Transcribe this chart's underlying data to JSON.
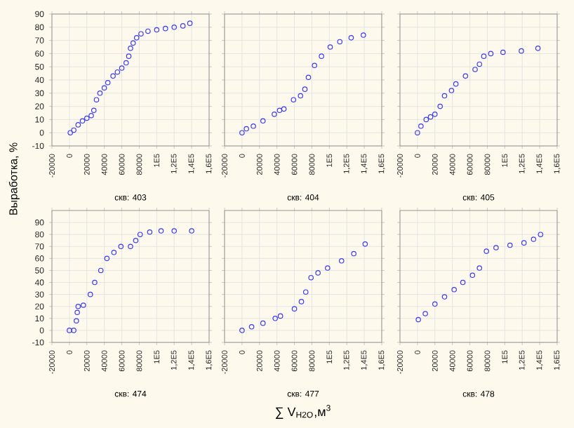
{
  "chart_data": [
    {
      "type": "scatter",
      "xlabel": "скв: 403",
      "ylabel": "Выработка, %",
      "color": "#3b3bf5",
      "marker": "circle",
      "grid": true,
      "x": [
        1000,
        5000,
        10000,
        15000,
        20000,
        25000,
        28000,
        31000,
        35000,
        40000,
        44000,
        50000,
        55000,
        60000,
        65000,
        68000,
        70000,
        73000,
        77000,
        82000,
        90000,
        100000,
        110000,
        120000,
        130000,
        138000
      ],
      "values": [
        0,
        2,
        6,
        9,
        11,
        13,
        17,
        25,
        30,
        34,
        38,
        43,
        46,
        49,
        53,
        58,
        64,
        68,
        72,
        75,
        77,
        78,
        79,
        80,
        81,
        83
      ],
      "xlim": [
        -20000,
        160000
      ],
      "ylim": [
        -10,
        90
      ],
      "xticks": [
        -20000,
        0,
        20000,
        40000,
        60000,
        80000,
        {
          "value": 100000,
          "label": "1E5"
        },
        {
          "value": 120000,
          "label": "1,2E5"
        },
        {
          "value": 140000,
          "label": "1,4E5"
        },
        {
          "value": 160000,
          "label": "1,6E5"
        }
      ],
      "yticks": [
        -10,
        0,
        10,
        20,
        30,
        40,
        50,
        60,
        70,
        80,
        90
      ]
    },
    {
      "type": "scatter",
      "xlabel": "скв: 404",
      "color": "#3b3bf5",
      "marker": "circle",
      "grid": true,
      "tick_labels": "x",
      "x": [
        0,
        5000,
        13000,
        24000,
        37000,
        43000,
        48000,
        59000,
        67000,
        72000,
        76000,
        83000,
        91000,
        101000,
        112000,
        125000,
        139000
      ],
      "values": [
        0,
        3,
        5,
        9,
        14,
        17,
        18,
        25,
        28,
        33,
        42,
        51,
        58,
        65,
        69,
        72,
        74
      ],
      "xlim": [
        -20000,
        160000
      ],
      "ylim": [
        -10,
        90
      ],
      "xticks": [
        -20000,
        0,
        20000,
        40000,
        60000,
        80000,
        {
          "value": 100000,
          "label": "1E5"
        },
        {
          "value": 120000,
          "label": "1,2E5"
        },
        {
          "value": 140000,
          "label": "1,4E5"
        },
        {
          "value": 160000,
          "label": "1,6E5"
        }
      ],
      "yticks": [
        -10,
        0,
        10,
        20,
        30,
        40,
        50,
        60,
        70,
        80,
        90
      ]
    },
    {
      "type": "scatter",
      "xlabel": "скв: 405",
      "color": "#3b3bf5",
      "marker": "circle",
      "grid": true,
      "tick_labels": "x",
      "x": [
        0,
        4000,
        10000,
        15000,
        20000,
        26000,
        31000,
        39000,
        44000,
        55000,
        66000,
        71000,
        76000,
        84000,
        98000,
        119000,
        138000
      ],
      "values": [
        0,
        5,
        10,
        12,
        14,
        20,
        28,
        32,
        37,
        43,
        48,
        52,
        58,
        60,
        61,
        62,
        64
      ],
      "xlim": [
        -20000,
        160000
      ],
      "ylim": [
        -10,
        90
      ],
      "xticks": [
        -20000,
        0,
        20000,
        40000,
        60000,
        80000,
        {
          "value": 100000,
          "label": "1E5"
        },
        {
          "value": 120000,
          "label": "1,2E5"
        },
        {
          "value": 140000,
          "label": "1,4E5"
        },
        {
          "value": 160000,
          "label": "1,6E5"
        }
      ],
      "yticks": [
        -10,
        0,
        10,
        20,
        30,
        40,
        50,
        60,
        70,
        80,
        90
      ]
    },
    {
      "type": "scatter",
      "xlabel": "скв: 474",
      "color": "#3b3bf5",
      "marker": "circle",
      "grid": true,
      "x": [
        0,
        5000,
        8000,
        9000,
        10000,
        16000,
        24000,
        29000,
        36000,
        43000,
        51000,
        59000,
        70000,
        76000,
        81000,
        92000,
        105000,
        120000,
        140000
      ],
      "values": [
        0,
        0,
        8,
        15,
        20,
        21,
        30,
        40,
        50,
        60,
        65,
        70,
        70,
        75,
        80,
        82,
        83,
        83,
        83
      ],
      "xlim": [
        -20000,
        160000
      ],
      "ylim": [
        -10,
        100
      ],
      "xticks": [
        -20000,
        0,
        20000,
        40000,
        60000,
        80000,
        {
          "value": 100000,
          "label": "1E5"
        },
        {
          "value": 120000,
          "label": "1,2E5"
        },
        {
          "value": 140000,
          "label": "1,4E5"
        },
        {
          "value": 160000,
          "label": "1,6E5"
        }
      ],
      "yticks": [
        -10,
        0,
        10,
        20,
        30,
        40,
        50,
        60,
        70,
        80,
        90
      ]
    },
    {
      "type": "scatter",
      "xlabel": "скв: 477",
      "color": "#3b3bf5",
      "marker": "circle",
      "grid": true,
      "tick_labels": "x",
      "annotations": [
        "∑ V$_{H2O}$,м$^{3}$"
      ],
      "x": [
        0,
        11000,
        24000,
        38000,
        44000,
        60000,
        68000,
        73000,
        79000,
        87000,
        98000,
        114000,
        128000,
        141000
      ],
      "values": [
        0,
        3,
        6,
        10,
        12,
        18,
        24,
        32,
        44,
        48,
        52,
        58,
        64,
        72
      ],
      "xlim": [
        -20000,
        160000
      ],
      "ylim": [
        -10,
        100
      ],
      "xticks": [
        -20000,
        0,
        20000,
        40000,
        60000,
        80000,
        {
          "value": 100000,
          "label": "1E5"
        },
        {
          "value": 120000,
          "label": "1,2E5"
        },
        {
          "value": 140000,
          "label": "1,4E5"
        },
        {
          "value": 160000,
          "label": "1,6E5"
        }
      ],
      "yticks": [
        -10,
        0,
        10,
        20,
        30,
        40,
        50,
        60,
        70,
        80,
        90
      ]
    },
    {
      "type": "scatter",
      "xlabel": "скв: 478",
      "color": "#3b3bf5",
      "marker": "circle",
      "grid": true,
      "tick_labels": "x",
      "x": [
        1000,
        9000,
        20000,
        31000,
        42000,
        52000,
        63000,
        71000,
        79000,
        90000,
        106000,
        122000,
        133000,
        141000
      ],
      "values": [
        9,
        14,
        22,
        28,
        34,
        40,
        46,
        52,
        66,
        69,
        71,
        73,
        76,
        80
      ],
      "xlim": [
        -20000,
        160000
      ],
      "ylim": [
        -10,
        100
      ],
      "xticks": [
        -20000,
        0,
        20000,
        40000,
        60000,
        80000,
        {
          "value": 100000,
          "label": "1E5"
        },
        {
          "value": 120000,
          "label": "1,2E5"
        },
        {
          "value": 140000,
          "label": "1,4E5"
        },
        {
          "value": 160000,
          "label": "1,6E5"
        }
      ],
      "yticks": [
        -10,
        0,
        10,
        20,
        30,
        40,
        50,
        60,
        70,
        80,
        90
      ]
    }
  ]
}
